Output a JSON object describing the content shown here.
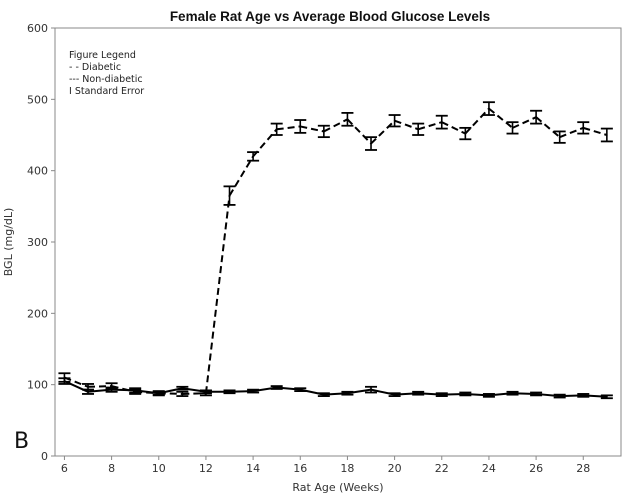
{
  "chart_data": {
    "type": "line",
    "title": "Female Rat Age vs Average Blood Glucose Levels",
    "xlabel": "Rat Age (Weeks)",
    "ylabel": "BGL (mg/dL)",
    "xlim": [
      5.6,
      29.6
    ],
    "ylim": [
      0,
      600
    ],
    "xticks": [
      6,
      8,
      10,
      12,
      14,
      16,
      18,
      20,
      22,
      24,
      26,
      28
    ],
    "yticks": [
      0,
      100,
      200,
      300,
      400,
      500,
      600
    ],
    "grid": false,
    "legend_position": "top-left",
    "legend": {
      "title": "Figure Legend",
      "items": [
        "- - Diabetic",
        "--- Non-diabetic",
        "I  Standard Error"
      ]
    },
    "panel_label": "B",
    "series": [
      {
        "name": "Diabetic",
        "style": "dashed",
        "x": [
          6,
          7,
          8,
          9,
          10,
          11,
          12,
          13,
          14,
          15,
          16,
          17,
          18,
          19,
          20,
          21,
          22,
          23,
          24,
          25,
          26,
          27,
          28,
          29
        ],
        "y": [
          110,
          97,
          98,
          90,
          88,
          87,
          88,
          365,
          420,
          458,
          462,
          455,
          472,
          438,
          470,
          458,
          468,
          452,
          487,
          460,
          475,
          447,
          460,
          450
        ],
        "err": [
          6,
          4,
          4,
          3,
          3,
          3,
          3,
          13,
          6,
          8,
          9,
          8,
          9,
          9,
          8,
          8,
          9,
          8,
          9,
          8,
          9,
          8,
          8,
          9
        ]
      },
      {
        "name": "Non-diabetic",
        "style": "solid",
        "x": [
          6,
          7,
          8,
          9,
          10,
          11,
          12,
          13,
          14,
          15,
          16,
          17,
          18,
          19,
          20,
          21,
          22,
          23,
          24,
          25,
          26,
          27,
          28,
          29
        ],
        "y": [
          105,
          90,
          93,
          92,
          88,
          95,
          90,
          90,
          91,
          96,
          93,
          86,
          88,
          93,
          86,
          88,
          86,
          87,
          85,
          88,
          87,
          84,
          85,
          83
        ],
        "err": [
          4,
          3,
          3,
          3,
          2,
          2,
          2,
          2,
          2,
          2,
          2,
          2,
          2,
          4,
          2,
          2,
          2,
          2,
          2,
          2,
          2,
          2,
          2,
          2
        ]
      }
    ]
  }
}
